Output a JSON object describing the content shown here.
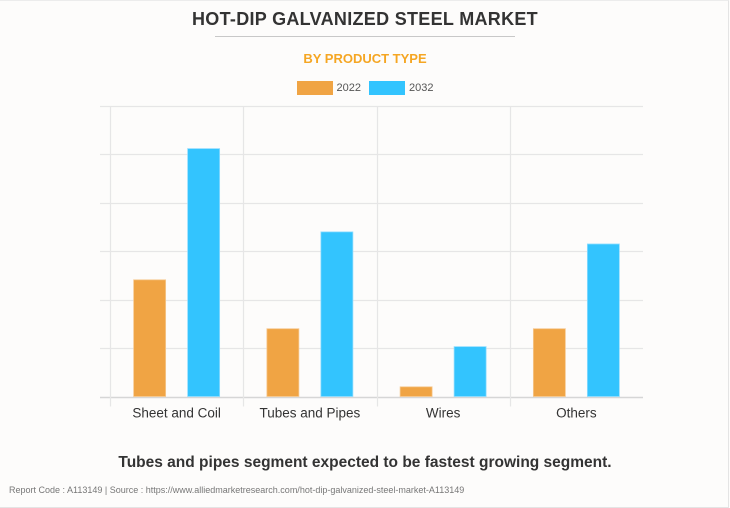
{
  "header": {
    "title": "HOT-DIP GALVANIZED STEEL MARKET",
    "subtitle": "BY PRODUCT TYPE"
  },
  "legend": [
    {
      "label": "2022",
      "color": "#f0a444"
    },
    {
      "label": "2032",
      "color": "#33c4fe"
    }
  ],
  "chart_data": {
    "type": "bar",
    "title": "HOT-DIP GALVANIZED STEEL MARKET",
    "subtitle": "BY PRODUCT TYPE",
    "xlabel": "",
    "ylabel": "",
    "categories": [
      "Sheet and Coil",
      "Tubes and Pipes",
      "Wires",
      "Others"
    ],
    "series": [
      {
        "name": "2022",
        "color": "#f0a444",
        "values": [
          2.41,
          1.4,
          0.2,
          1.4
        ]
      },
      {
        "name": "2032",
        "color": "#33c4fe",
        "values": [
          5.12,
          3.4,
          1.03,
          3.15
        ]
      }
    ],
    "ylim": [
      0,
      6
    ],
    "y_tick_count": 6,
    "y_tick_labels_visible": false,
    "grid": true,
    "legend_position": "top-center",
    "value_units": "relative (no axis labels shown)"
  },
  "insight": "Tubes and pipes segment expected to be fastest growing segment.",
  "footer": "Report Code : A113149  |  Source : https://www.alliedmarketresearch.com/hot-dip-galvanized-steel-market-A113149"
}
